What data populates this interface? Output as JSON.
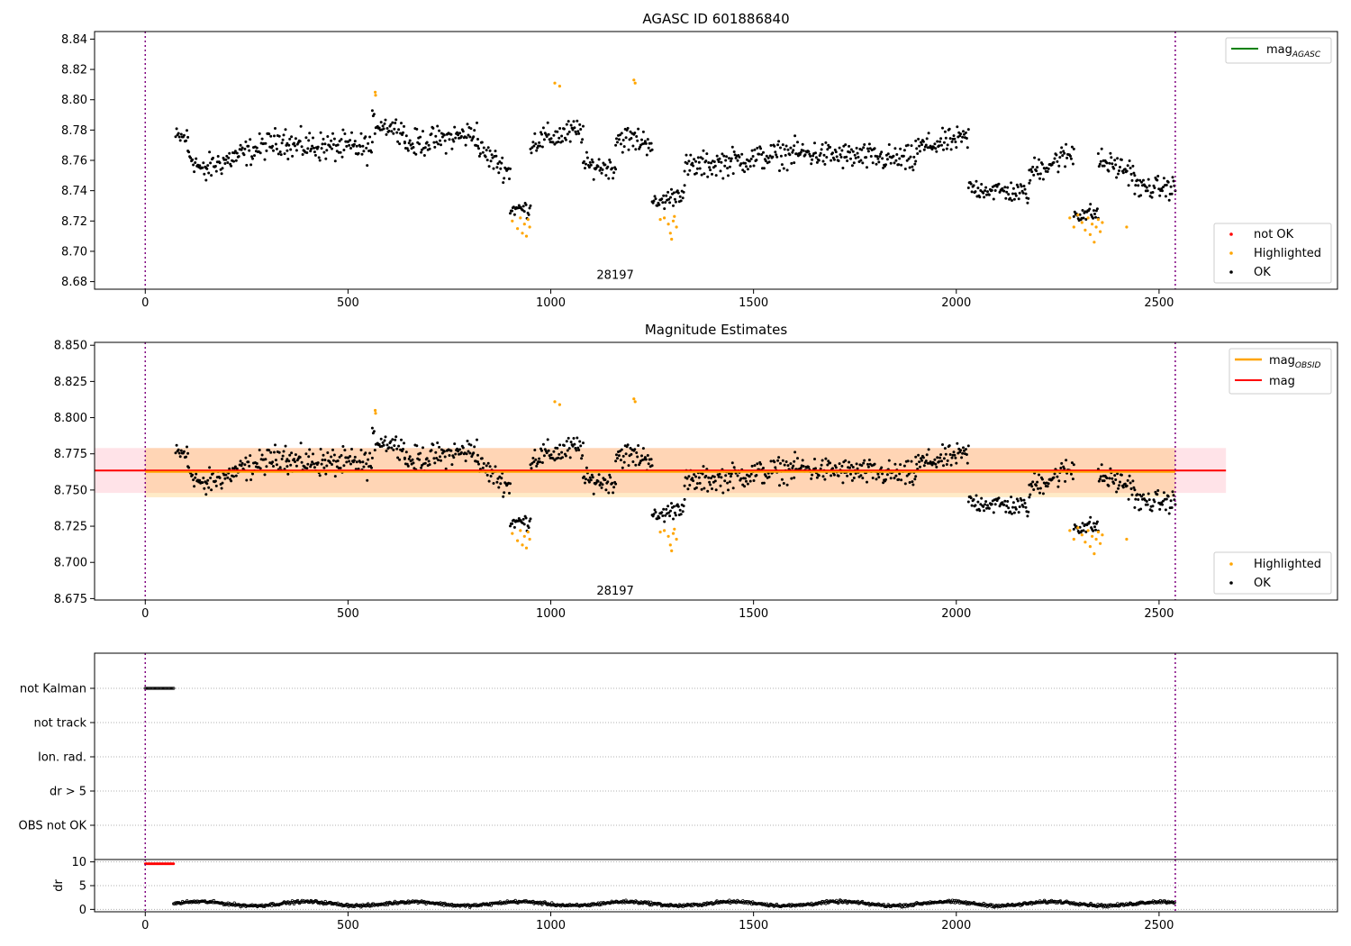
{
  "chart_data": [
    {
      "type": "scatter",
      "title": "AGASC ID 601886840",
      "xlim": [
        -125,
        2940
      ],
      "ylim": [
        8.675,
        8.845
      ],
      "xticks": [
        0,
        500,
        1000,
        1500,
        2000,
        2500
      ],
      "xtick_labels": [
        "0",
        "500",
        "1000",
        "1500",
        "2000",
        "2500"
      ],
      "yticks": [
        8.68,
        8.7,
        8.72,
        8.74,
        8.76,
        8.78,
        8.8,
        8.82,
        8.84
      ],
      "ytick_labels": [
        "8.68",
        "8.70",
        "8.72",
        "8.74",
        "8.76",
        "8.78",
        "8.80",
        "8.82",
        "8.84"
      ],
      "annotation": {
        "text": "28197",
        "x": 1270,
        "y": 8.68
      },
      "vlines": [
        0,
        2540
      ],
      "legend_upper": [
        {
          "label": "mag",
          "subscript": "AGASC",
          "color": "#008000",
          "kind": "line"
        }
      ],
      "legend_lower": [
        {
          "label": "not OK",
          "color": "#ff0000",
          "kind": "dot"
        },
        {
          "label": "Highlighted",
          "color": "#ffa500",
          "kind": "dot"
        },
        {
          "label": "OK",
          "color": "#000000",
          "kind": "dot"
        }
      ],
      "ok_segments": [
        {
          "x": [
            75,
            105
          ],
          "y": [
            8.775,
            8.775
          ],
          "spread": 0.008
        },
        {
          "x": [
            105,
            150
          ],
          "y": [
            8.765,
            8.75
          ],
          "spread": 0.009
        },
        {
          "x": [
            150,
            350
          ],
          "y": [
            8.755,
            8.775
          ],
          "spread": 0.01
        },
        {
          "x": [
            350,
            560
          ],
          "y": [
            8.77,
            8.768
          ],
          "spread": 0.011
        },
        {
          "x": [
            560,
            640
          ],
          "y": [
            8.785,
            8.78
          ],
          "spread": 0.008
        },
        {
          "x": [
            640,
            820
          ],
          "y": [
            8.77,
            8.778
          ],
          "spread": 0.01
        },
        {
          "x": [
            820,
            900
          ],
          "y": [
            8.768,
            8.752
          ],
          "spread": 0.009
        },
        {
          "x": [
            900,
            950
          ],
          "y": [
            8.728,
            8.728
          ],
          "spread": 0.006
        },
        {
          "x": [
            950,
            1080
          ],
          "y": [
            8.772,
            8.78
          ],
          "spread": 0.01
        },
        {
          "x": [
            1080,
            1160
          ],
          "y": [
            8.757,
            8.755
          ],
          "spread": 0.008
        },
        {
          "x": [
            1160,
            1250
          ],
          "y": [
            8.775,
            8.772
          ],
          "spread": 0.01
        },
        {
          "x": [
            1250,
            1330
          ],
          "y": [
            8.73,
            8.74
          ],
          "spread": 0.007
        },
        {
          "x": [
            1330,
            1600
          ],
          "y": [
            8.755,
            8.765
          ],
          "spread": 0.01
        },
        {
          "x": [
            1600,
            1900
          ],
          "y": [
            8.765,
            8.76
          ],
          "spread": 0.01
        },
        {
          "x": [
            1900,
            2030
          ],
          "y": [
            8.768,
            8.775
          ],
          "spread": 0.009
        },
        {
          "x": [
            2030,
            2180
          ],
          "y": [
            8.742,
            8.738
          ],
          "spread": 0.008
        },
        {
          "x": [
            2180,
            2290
          ],
          "y": [
            8.752,
            8.765
          ],
          "spread": 0.01
        },
        {
          "x": [
            2290,
            2350
          ],
          "y": [
            8.725,
            8.725
          ],
          "spread": 0.007
        },
        {
          "x": [
            2350,
            2440
          ],
          "y": [
            8.76,
            8.752
          ],
          "spread": 0.009
        },
        {
          "x": [
            2440,
            2540
          ],
          "y": [
            8.742,
            8.742
          ],
          "spread": 0.008
        }
      ],
      "highlighted_points": [
        {
          "x": 567,
          "y": 8.805
        },
        {
          "x": 568,
          "y": 8.803
        },
        {
          "x": 905,
          "y": 8.72
        },
        {
          "x": 918,
          "y": 8.715
        },
        {
          "x": 925,
          "y": 8.722
        },
        {
          "x": 930,
          "y": 8.712
        },
        {
          "x": 935,
          "y": 8.718
        },
        {
          "x": 940,
          "y": 8.71
        },
        {
          "x": 944,
          "y": 8.721
        },
        {
          "x": 948,
          "y": 8.716
        },
        {
          "x": 1010,
          "y": 8.811
        },
        {
          "x": 1022,
          "y": 8.809
        },
        {
          "x": 1205,
          "y": 8.813
        },
        {
          "x": 1208,
          "y": 8.811
        },
        {
          "x": 1270,
          "y": 8.721
        },
        {
          "x": 1280,
          "y": 8.722
        },
        {
          "x": 1290,
          "y": 8.718
        },
        {
          "x": 1295,
          "y": 8.712
        },
        {
          "x": 1298,
          "y": 8.708
        },
        {
          "x": 1302,
          "y": 8.72
        },
        {
          "x": 1305,
          "y": 8.723
        },
        {
          "x": 1310,
          "y": 8.716
        },
        {
          "x": 2280,
          "y": 8.722
        },
        {
          "x": 2290,
          "y": 8.716
        },
        {
          "x": 2300,
          "y": 8.724
        },
        {
          "x": 2310,
          "y": 8.719
        },
        {
          "x": 2318,
          "y": 8.714
        },
        {
          "x": 2325,
          "y": 8.722
        },
        {
          "x": 2330,
          "y": 8.711
        },
        {
          "x": 2335,
          "y": 8.718
        },
        {
          "x": 2340,
          "y": 8.706
        },
        {
          "x": 2345,
          "y": 8.716
        },
        {
          "x": 2350,
          "y": 8.721
        },
        {
          "x": 2355,
          "y": 8.713
        },
        {
          "x": 2360,
          "y": 8.719
        },
        {
          "x": 2420,
          "y": 8.716
        }
      ]
    },
    {
      "type": "scatter",
      "title": "Magnitude Estimates",
      "xlim": [
        -125,
        2940
      ],
      "ylim": [
        8.674,
        8.852
      ],
      "xticks": [
        0,
        500,
        1000,
        1500,
        2000,
        2500
      ],
      "xtick_labels": [
        "0",
        "500",
        "1000",
        "1500",
        "2000",
        "2500"
      ],
      "yticks": [
        8.675,
        8.7,
        8.725,
        8.75,
        8.775,
        8.8,
        8.825,
        8.85
      ],
      "ytick_labels": [
        "8.675",
        "8.700",
        "8.725",
        "8.750",
        "8.775",
        "8.800",
        "8.825",
        "8.850"
      ],
      "annotation": {
        "text": "28197",
        "x": 1270,
        "y": 8.676
      },
      "vlines": [
        0,
        2540
      ],
      "mag_line": {
        "y": 8.7635,
        "x": [
          -125,
          2665
        ],
        "band": [
          8.748,
          8.779
        ],
        "color": "#ff0000"
      },
      "mag_obsid_line": {
        "y": 8.7625,
        "x": [
          0,
          2540
        ],
        "band": [
          8.745,
          8.779
        ],
        "color": "#ffa500"
      },
      "legend_upper": [
        {
          "label": "mag",
          "subscript": "OBSID",
          "color": "#ffa500",
          "kind": "line"
        },
        {
          "label": "mag",
          "color": "#ff0000",
          "kind": "line"
        }
      ],
      "legend_lower": [
        {
          "label": "Highlighted",
          "color": "#ffa500",
          "kind": "dot"
        },
        {
          "label": "OK",
          "color": "#000000",
          "kind": "dot"
        }
      ]
    },
    {
      "type": "scatter",
      "xlim": [
        -125,
        2940
      ],
      "categories": [
        "not Kalman",
        "not track",
        "Ion. rad.",
        "dr > 5",
        "OBS not OK"
      ],
      "flag_segments": [
        {
          "category": "not Kalman",
          "x": [
            0,
            70
          ]
        }
      ],
      "vlines": [
        0,
        2540
      ]
    },
    {
      "type": "scatter",
      "ylabel": "dr",
      "xlim": [
        -125,
        2940
      ],
      "ylim": [
        -0.5,
        10.5
      ],
      "yticks": [
        0,
        5,
        10
      ],
      "ytick_labels": [
        "0",
        "5",
        "10"
      ],
      "xticks": [
        0,
        500,
        1000,
        1500,
        2000,
        2500
      ],
      "xtick_labels": [
        "0",
        "500",
        "1000",
        "1500",
        "2000",
        "2500"
      ],
      "notok_segment": {
        "x": [
          0,
          70
        ],
        "y": 9.6
      },
      "dr_range": {
        "x": [
          70,
          2540
        ],
        "y_mean": 1.2,
        "y_spread": 0.7
      },
      "vlines": [
        0,
        2540
      ]
    }
  ]
}
